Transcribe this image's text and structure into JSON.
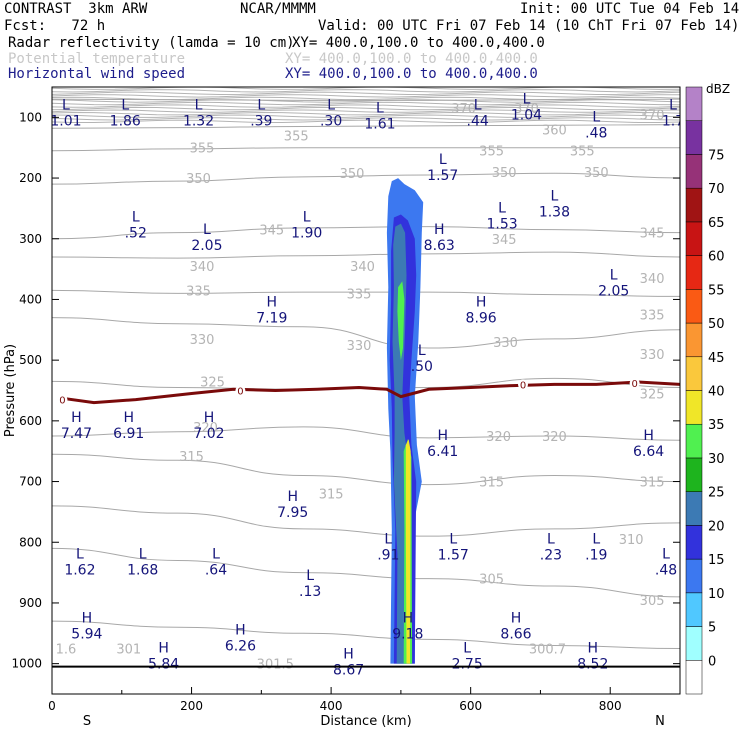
{
  "header": {
    "model": "CONTRAST  3km ARW",
    "org": "NCAR/MMMM",
    "init": "Init: 00 UTC Tue 04 Feb 14",
    "fcst": "Fcst:   72 h",
    "valid": "Valid: 00 UTC Fri 07 Feb 14 (10 ChT Fri 07 Feb 14)",
    "field1": "Radar reflectivity (lamda = 10 cm)",
    "field1_xy": "XY= 400.0,100.0 to 400.0,400.0",
    "field2": "Potential temperature",
    "field2_xy": "XY= 400.0,100.0 to 400.0,400.0",
    "field3": "Horizontal wind speed",
    "field3_xy": "XY= 400.0,100.0 to 400.0,400.0"
  },
  "colors": {
    "field1": "#000000",
    "field2": "#c8c8c8",
    "field3": "#1e1e8c",
    "theta": "#a0a0a0",
    "zero_line": "#7a0a0a",
    "hl_text": "#14147a"
  },
  "chart_data": {
    "type": "heatmap",
    "xlabel": "Distance (km)",
    "ylabel": "Pressure (hPa)",
    "xlim": [
      0,
      900
    ],
    "ylim": [
      1050,
      50
    ],
    "x_ticks": [
      0,
      200,
      400,
      600,
      800
    ],
    "y_ticks": [
      100,
      200,
      300,
      400,
      500,
      600,
      700,
      800,
      900,
      1000
    ],
    "x_end_labels": {
      "left": "S",
      "right": "N"
    },
    "colorbar": {
      "unit": "dBZ",
      "levels": [
        0,
        5,
        10,
        15,
        20,
        25,
        30,
        35,
        40,
        45,
        50,
        55,
        60,
        65,
        70,
        75
      ],
      "colors": [
        "#ffffff",
        "#a0ffff",
        "#50c8ff",
        "#3c78f0",
        "#3232dc",
        "#3c7ab4",
        "#1eb41e",
        "#50f050",
        "#f0e628",
        "#fac83c",
        "#fa9632",
        "#fa5a14",
        "#e62814",
        "#c81414",
        "#a01414",
        "#963278",
        "#7832a0",
        "#b482c8"
      ]
    },
    "theta_contours": [
      {
        "value": 370,
        "label": "370",
        "p": [
          70,
          71,
          72,
          72,
          71,
          70
        ]
      },
      {
        "value": 360,
        "label": "360",
        "p": [
          118,
          117,
          115,
          114,
          113,
          112
        ]
      },
      {
        "value": 355,
        "label": "355",
        "p": [
          155,
          152,
          150,
          150,
          150,
          150
        ]
      },
      {
        "value": 350,
        "label": "350",
        "p": [
          210,
          205,
          198,
          195,
          192,
          200
        ]
      },
      {
        "value": 345,
        "label": "345",
        "p": [
          300,
          290,
          282,
          280,
          285,
          290
        ]
      },
      {
        "value": 340,
        "label": "340",
        "p": [
          330,
          332,
          328,
          325,
          322,
          330
        ]
      },
      {
        "value": 335,
        "label": "335",
        "p": [
          385,
          390,
          388,
          388,
          392,
          395
        ]
      },
      {
        "value": 330,
        "label": "330",
        "p": [
          430,
          440,
          445,
          480,
          465,
          450
        ]
      },
      {
        "value": 325,
        "label": "325",
        "p": [
          535,
          545,
          548,
          545,
          530,
          545
        ]
      },
      {
        "value": 320,
        "label": "320",
        "p": [
          625,
          618,
          610,
          628,
          625,
          632
        ]
      },
      {
        "value": 315,
        "label": "315",
        "p": [
          655,
          665,
          690,
          705,
          690,
          700
        ]
      },
      {
        "value": 310,
        "label": "310",
        "p": [
          740,
          752,
          778,
          790,
          778,
          768
        ]
      },
      {
        "value": 305,
        "label": "305",
        "p": [
          810,
          830,
          850,
          860,
          872,
          890
        ]
      },
      {
        "value": 301,
        "label": "301",
        "p": [
          930,
          940,
          950,
          960,
          970,
          975
        ]
      }
    ],
    "theta_x": [
      0,
      180,
      360,
      540,
      720,
      900
    ],
    "contour_labels": [
      {
        "text": "355",
        "x": 215,
        "p": 150
      },
      {
        "text": "355",
        "x": 350,
        "p": 130
      },
      {
        "text": "355",
        "x": 630,
        "p": 155
      },
      {
        "text": "355",
        "x": 760,
        "p": 155
      },
      {
        "text": "350",
        "x": 210,
        "p": 200
      },
      {
        "text": "350",
        "x": 430,
        "p": 192
      },
      {
        "text": "350",
        "x": 648,
        "p": 190
      },
      {
        "text": "350",
        "x": 780,
        "p": 190
      },
      {
        "text": "345",
        "x": 315,
        "p": 285
      },
      {
        "text": "345",
        "x": 648,
        "p": 300
      },
      {
        "text": "345",
        "x": 860,
        "p": 290
      },
      {
        "text": "340",
        "x": 215,
        "p": 345
      },
      {
        "text": "340",
        "x": 445,
        "p": 345
      },
      {
        "text": "340",
        "x": 860,
        "p": 365
      },
      {
        "text": "335",
        "x": 210,
        "p": 385
      },
      {
        "text": "335",
        "x": 440,
        "p": 390
      },
      {
        "text": "335",
        "x": 860,
        "p": 425
      },
      {
        "text": "330",
        "x": 215,
        "p": 465
      },
      {
        "text": "330",
        "x": 440,
        "p": 475
      },
      {
        "text": "330",
        "x": 650,
        "p": 470
      },
      {
        "text": "330",
        "x": 860,
        "p": 490
      },
      {
        "text": "325",
        "x": 230,
        "p": 535
      },
      {
        "text": "325",
        "x": 860,
        "p": 555
      },
      {
        "text": "320",
        "x": 220,
        "p": 610
      },
      {
        "text": "320",
        "x": 640,
        "p": 625
      },
      {
        "text": "320",
        "x": 720,
        "p": 625
      },
      {
        "text": "315",
        "x": 200,
        "p": 658
      },
      {
        "text": "315",
        "x": 400,
        "p": 720
      },
      {
        "text": "315",
        "x": 630,
        "p": 700
      },
      {
        "text": "315",
        "x": 860,
        "p": 700
      },
      {
        "text": "310",
        "x": 830,
        "p": 795
      },
      {
        "text": "305",
        "x": 630,
        "p": 860
      },
      {
        "text": "305",
        "x": 860,
        "p": 895
      },
      {
        "text": "301",
        "x": 110,
        "p": 975
      },
      {
        "text": "301.5",
        "x": 320,
        "p": 1000
      },
      {
        "text": "300.7",
        "x": 710,
        "p": 975
      },
      {
        "text": "1.6",
        "x": 20,
        "p": 975
      },
      {
        "text": "370",
        "x": 590,
        "p": 85
      },
      {
        "text": "370",
        "x": 680,
        "p": 85
      },
      {
        "text": "370",
        "x": 860,
        "p": 95
      },
      {
        "text": "360",
        "x": 720,
        "p": 120
      }
    ],
    "zero_line": {
      "label": "0",
      "x": [
        10,
        60,
        120,
        200,
        260,
        320,
        380,
        440,
        480,
        500,
        540,
        600,
        660,
        720,
        780,
        840,
        900
      ],
      "p": [
        562,
        570,
        565,
        555,
        548,
        550,
        548,
        545,
        548,
        560,
        548,
        545,
        542,
        540,
        540,
        536,
        540
      ]
    },
    "zero_labels": [
      {
        "x": 15,
        "p": 565
      },
      {
        "x": 270,
        "p": 550
      },
      {
        "x": 675,
        "p": 540
      },
      {
        "x": 835,
        "p": 538
      }
    ],
    "reflectivity_cells": [
      {
        "level": 10,
        "pts": [
          [
            487,
            205
          ],
          [
            496,
            200
          ],
          [
            505,
            210
          ],
          [
            520,
            220
          ],
          [
            532,
            240
          ],
          [
            530,
            290
          ],
          [
            528,
            380
          ],
          [
            525,
            470
          ],
          [
            520,
            560
          ],
          [
            523,
            640
          ],
          [
            530,
            700
          ],
          [
            520,
            760
          ],
          [
            520,
            1000
          ],
          [
            485,
            1000
          ],
          [
            487,
            780
          ],
          [
            485,
            650
          ],
          [
            482,
            580
          ],
          [
            480,
            480
          ],
          [
            482,
            380
          ],
          [
            480,
            290
          ],
          [
            482,
            230
          ]
        ]
      },
      {
        "level": 15,
        "pts": [
          [
            490,
            265
          ],
          [
            500,
            260
          ],
          [
            510,
            270
          ],
          [
            520,
            300
          ],
          [
            522,
            360
          ],
          [
            520,
            420
          ],
          [
            515,
            500
          ],
          [
            512,
            560
          ],
          [
            515,
            640
          ],
          [
            522,
            700
          ],
          [
            520,
            1000
          ],
          [
            490,
            1000
          ],
          [
            492,
            780
          ],
          [
            488,
            660
          ],
          [
            487,
            580
          ],
          [
            484,
            500
          ],
          [
            486,
            400
          ],
          [
            486,
            320
          ]
        ]
      },
      {
        "level": 20,
        "pts": [
          [
            492,
            280
          ],
          [
            500,
            275
          ],
          [
            506,
            290
          ],
          [
            508,
            360
          ],
          [
            506,
            450
          ],
          [
            503,
            530
          ],
          [
            502,
            560
          ],
          [
            505,
            620
          ],
          [
            512,
            680
          ],
          [
            516,
            1000
          ],
          [
            494,
            1000
          ],
          [
            495,
            820
          ],
          [
            490,
            700
          ],
          [
            491,
            620
          ],
          [
            491,
            560
          ],
          [
            488,
            470
          ],
          [
            490,
            380
          ],
          [
            489,
            310
          ]
        ]
      },
      {
        "level": 30,
        "pts": [
          [
            496,
            380
          ],
          [
            502,
            370
          ],
          [
            505,
            400
          ],
          [
            503,
            480
          ],
          [
            500,
            500
          ],
          [
            497,
            470
          ],
          [
            495,
            420
          ]
        ]
      },
      {
        "level": 30,
        "pts": [
          [
            504,
            650
          ],
          [
            510,
            630
          ],
          [
            515,
            660
          ],
          [
            516,
            1000
          ],
          [
            504,
            1000
          ],
          [
            505,
            780
          ]
        ]
      },
      {
        "level": 35,
        "pts": [
          [
            507,
            640
          ],
          [
            511,
            630
          ],
          [
            514,
            650
          ],
          [
            513,
            1000
          ],
          [
            508,
            1000
          ],
          [
            507,
            760
          ]
        ]
      }
    ],
    "wind_extrema": [
      {
        "type": "L",
        "value": "1.01",
        "x": 20,
        "p": 100
      },
      {
        "type": "L",
        "value": "1.86",
        "x": 105,
        "p": 100
      },
      {
        "type": "L",
        "value": "1.32",
        "x": 210,
        "p": 100
      },
      {
        "type": "L",
        "value": ".39",
        "x": 300,
        "p": 100
      },
      {
        "type": "L",
        "value": ".30",
        "x": 400,
        "p": 100
      },
      {
        "type": "L",
        "value": "1.61",
        "x": 470,
        "p": 105
      },
      {
        "type": "L",
        "value": ".44",
        "x": 610,
        "p": 100
      },
      {
        "type": "L",
        "value": "1.04",
        "x": 680,
        "p": 90
      },
      {
        "type": "L",
        "value": ".48",
        "x": 780,
        "p": 120
      },
      {
        "type": "L",
        "value": "1.7",
        "x": 890,
        "p": 100
      },
      {
        "type": "L",
        "value": "1.57",
        "x": 560,
        "p": 190
      },
      {
        "type": "L",
        "value": "1.53",
        "x": 645,
        "p": 270
      },
      {
        "type": "L",
        "value": "1.38",
        "x": 720,
        "p": 250
      },
      {
        "type": "L",
        "value": ".52",
        "x": 120,
        "p": 285
      },
      {
        "type": "L",
        "value": "2.05",
        "x": 222,
        "p": 305
      },
      {
        "type": "L",
        "value": "1.90",
        "x": 365,
        "p": 285
      },
      {
        "type": "H",
        "value": "8.63",
        "x": 555,
        "p": 305
      },
      {
        "type": "L",
        "value": "2.05",
        "x": 805,
        "p": 380
      },
      {
        "type": "H",
        "value": "7.19",
        "x": 315,
        "p": 425
      },
      {
        "type": "H",
        "value": "8.96",
        "x": 615,
        "p": 425
      },
      {
        "type": "L",
        "value": ".50",
        "x": 530,
        "p": 505
      },
      {
        "type": "H",
        "value": "7.47",
        "x": 35,
        "p": 615
      },
      {
        "type": "H",
        "value": "6.91",
        "x": 110,
        "p": 615
      },
      {
        "type": "H",
        "value": "7.02",
        "x": 225,
        "p": 615
      },
      {
        "type": "H",
        "value": "6.41",
        "x": 560,
        "p": 645
      },
      {
        "type": "H",
        "value": "6.64",
        "x": 855,
        "p": 645
      },
      {
        "type": "H",
        "value": "7.95",
        "x": 345,
        "p": 745
      },
      {
        "type": "L",
        "value": ".91",
        "x": 482,
        "p": 815
      },
      {
        "type": "L",
        "value": "1.57",
        "x": 575,
        "p": 815
      },
      {
        "type": "L",
        "value": ".23",
        "x": 715,
        "p": 815
      },
      {
        "type": "L",
        "value": ".19",
        "x": 780,
        "p": 815
      },
      {
        "type": "L",
        "value": ".48",
        "x": 880,
        "p": 840
      },
      {
        "type": "L",
        "value": "1.62",
        "x": 40,
        "p": 840
      },
      {
        "type": "L",
        "value": "1.68",
        "x": 130,
        "p": 840
      },
      {
        "type": "L",
        "value": ".64",
        "x": 235,
        "p": 840
      },
      {
        "type": "L",
        "value": ".13",
        "x": 370,
        "p": 875
      },
      {
        "type": "H",
        "value": "5.94",
        "x": 50,
        "p": 945
      },
      {
        "type": "H",
        "value": "6.26",
        "x": 270,
        "p": 965
      },
      {
        "type": "H",
        "value": "9.18",
        "x": 510,
        "p": 945
      },
      {
        "type": "H",
        "value": "8.66",
        "x": 665,
        "p": 945
      },
      {
        "type": "H",
        "value": "5.84",
        "x": 160,
        "p": 995
      },
      {
        "type": "H",
        "value": "8.67",
        "x": 425,
        "p": 1005
      },
      {
        "type": "L",
        "value": "2.75",
        "x": 595,
        "p": 995
      },
      {
        "type": "H",
        "value": "8.52",
        "x": 775,
        "p": 995
      }
    ]
  }
}
